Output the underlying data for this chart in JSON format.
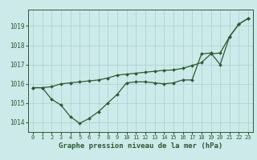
{
  "xlabel": "Graphe pression niveau de la mer (hPa)",
  "background_color": "#cceaea",
  "grid_color": "#aad4d4",
  "line_color": "#2d5a2d",
  "ylim": [
    1013.5,
    1019.85
  ],
  "xlim": [
    -0.5,
    23.5
  ],
  "yticks": [
    1014,
    1015,
    1016,
    1017,
    1018,
    1019
  ],
  "xticks": [
    0,
    1,
    2,
    3,
    4,
    5,
    6,
    7,
    8,
    9,
    10,
    11,
    12,
    13,
    14,
    15,
    16,
    17,
    18,
    19,
    20,
    21,
    22,
    23
  ],
  "series1_x": [
    0,
    1,
    2,
    3,
    4,
    5,
    6,
    7,
    8,
    9,
    10,
    11,
    12,
    13,
    14,
    15,
    16,
    17,
    18,
    19,
    20,
    21,
    22,
    23
  ],
  "series1_y": [
    1015.8,
    1015.8,
    1015.2,
    1014.9,
    1014.3,
    1013.95,
    1014.2,
    1014.55,
    1015.0,
    1015.45,
    1016.05,
    1016.1,
    1016.1,
    1016.05,
    1016.0,
    1016.05,
    1016.2,
    1016.2,
    1017.55,
    1017.6,
    1017.0,
    1018.45,
    1019.1,
    1019.4
  ],
  "series2_x": [
    0,
    1,
    2,
    3,
    4,
    5,
    6,
    7,
    8,
    9,
    10,
    11,
    12,
    13,
    14,
    15,
    16,
    17,
    18,
    19,
    20,
    21,
    22,
    23
  ],
  "series2_y": [
    1015.8,
    1015.8,
    1015.85,
    1016.0,
    1016.05,
    1016.1,
    1016.15,
    1016.2,
    1016.3,
    1016.45,
    1016.5,
    1016.55,
    1016.6,
    1016.65,
    1016.7,
    1016.72,
    1016.8,
    1016.95,
    1017.1,
    1017.55,
    1017.6,
    1018.45,
    1019.1,
    1019.4
  ]
}
